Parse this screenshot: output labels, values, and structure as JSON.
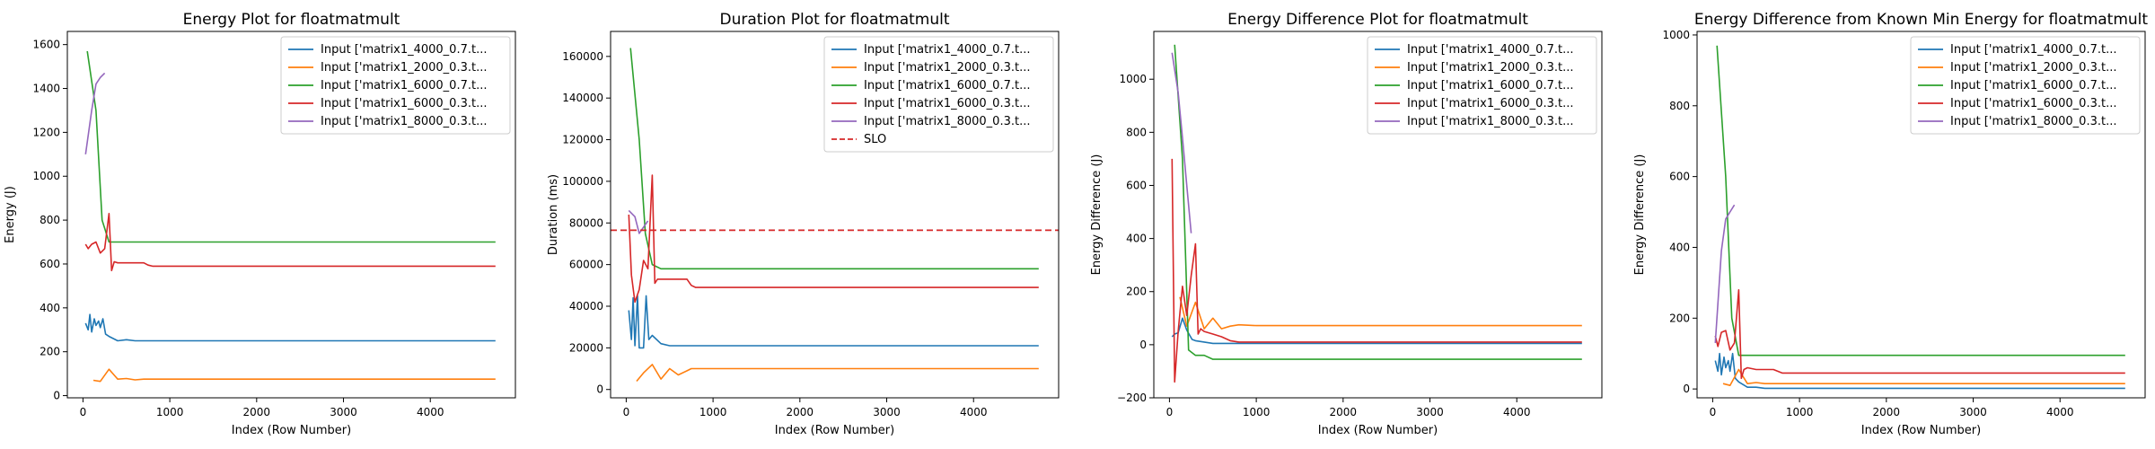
{
  "chart_data": [
    {
      "type": "line",
      "title": "Energy Plot for floatmatmult",
      "xlabel": "Index (Row Number)",
      "ylabel": "Energy (J)",
      "xlim": [
        -180,
        4980
      ],
      "ylim": [
        -10,
        1660
      ],
      "xticks": [
        0,
        1000,
        2000,
        3000,
        4000
      ],
      "yticks": [
        0,
        200,
        400,
        600,
        800,
        1000,
        1200,
        1400,
        1600
      ],
      "legend_position": "top-right",
      "series": [
        {
          "name": "Input ['matrix1_4000_0.7.t...",
          "color": "#1f77b4",
          "x": [
            30,
            60,
            80,
            100,
            130,
            150,
            180,
            200,
            230,
            260,
            300,
            400,
            500,
            600,
            700,
            4750
          ],
          "y": [
            330,
            300,
            370,
            290,
            350,
            320,
            340,
            310,
            350,
            280,
            270,
            250,
            255,
            250,
            250,
            250
          ]
        },
        {
          "name": "Input ['matrix1_2000_0.3.t...",
          "color": "#ff7f0e",
          "x": [
            120,
            200,
            300,
            400,
            500,
            600,
            700,
            4750
          ],
          "y": [
            70,
            65,
            120,
            75,
            78,
            72,
            75,
            75
          ]
        },
        {
          "name": "Input ['matrix1_6000_0.7.t...",
          "color": "#2ca02c",
          "x": [
            50,
            150,
            220,
            300,
            400,
            4750
          ],
          "y": [
            1570,
            1300,
            800,
            700,
            700,
            700
          ]
        },
        {
          "name": "Input ['matrix1_6000_0.3.t...",
          "color": "#d62728",
          "x": [
            30,
            60,
            100,
            150,
            200,
            250,
            300,
            330,
            360,
            400,
            500,
            600,
            700,
            750,
            800,
            4750
          ],
          "y": [
            690,
            670,
            690,
            700,
            650,
            670,
            830,
            570,
            610,
            605,
            605,
            605,
            605,
            595,
            590,
            590
          ]
        },
        {
          "name": "Input ['matrix1_8000_0.3.t...",
          "color": "#9467bd",
          "x": [
            30,
            100,
            150,
            200,
            250
          ],
          "y": [
            1100,
            1300,
            1420,
            1450,
            1470
          ]
        }
      ]
    },
    {
      "type": "line",
      "title": "Duration Plot for floatmatmult",
      "xlabel": "Index (Row Number)",
      "ylabel": "Duration (ms)",
      "xlim": [
        -180,
        4980
      ],
      "ylim": [
        -4000,
        172000
      ],
      "xticks": [
        0,
        1000,
        2000,
        3000,
        4000
      ],
      "yticks": [
        0,
        20000,
        40000,
        60000,
        80000,
        100000,
        120000,
        140000,
        160000
      ],
      "legend_position": "top-right",
      "slo": {
        "name": "SLO",
        "value": 76500,
        "color": "#d62728"
      },
      "series": [
        {
          "name": "Input ['matrix1_4000_0.7.t...",
          "color": "#1f77b4",
          "x": [
            30,
            60,
            80,
            100,
            130,
            150,
            180,
            200,
            230,
            260,
            300,
            400,
            500,
            600,
            700,
            4750
          ],
          "y": [
            38000,
            24000,
            44000,
            21000,
            45000,
            20000,
            20000,
            20000,
            45000,
            24000,
            26000,
            22000,
            21000,
            21000,
            21000,
            21000
          ]
        },
        {
          "name": "Input ['matrix1_2000_0.3.t...",
          "color": "#ff7f0e",
          "x": [
            120,
            200,
            300,
            400,
            500,
            600,
            700,
            750,
            4750
          ],
          "y": [
            4000,
            8000,
            12000,
            5000,
            10000,
            7000,
            9000,
            10000,
            10000
          ]
        },
        {
          "name": "Input ['matrix1_6000_0.7.t...",
          "color": "#2ca02c",
          "x": [
            50,
            150,
            220,
            300,
            400,
            4750
          ],
          "y": [
            164000,
            120000,
            75000,
            60000,
            58000,
            58000
          ]
        },
        {
          "name": "Input ['matrix1_6000_0.3.t...",
          "color": "#d62728",
          "x": [
            30,
            60,
            100,
            150,
            200,
            250,
            300,
            330,
            360,
            400,
            500,
            600,
            700,
            750,
            800,
            4750
          ],
          "y": [
            84000,
            55000,
            42000,
            48000,
            62000,
            58000,
            103000,
            51000,
            53000,
            53000,
            53000,
            53000,
            53000,
            50000,
            49000,
            49000
          ]
        },
        {
          "name": "Input ['matrix1_8000_0.3.t...",
          "color": "#9467bd",
          "x": [
            30,
            100,
            150,
            200,
            250
          ],
          "y": [
            86000,
            83000,
            75000,
            78000,
            81000
          ]
        }
      ]
    },
    {
      "type": "line",
      "title": "Energy Difference Plot for floatmatmult",
      "xlabel": "Index (Row Number)",
      "ylabel": "Energy Difference (J)",
      "xlim": [
        -180,
        4980
      ],
      "ylim": [
        -200,
        1180
      ],
      "xticks": [
        0,
        1000,
        2000,
        3000,
        4000
      ],
      "yticks": [
        -200,
        0,
        200,
        400,
        600,
        800,
        1000
      ],
      "legend_position": "top-right",
      "series": [
        {
          "name": "Input ['matrix1_4000_0.7.t...",
          "color": "#1f77b4",
          "x": [
            30,
            60,
            100,
            150,
            200,
            260,
            300,
            400,
            500,
            600,
            700,
            4750
          ],
          "y": [
            30,
            40,
            45,
            100,
            55,
            20,
            15,
            10,
            5,
            5,
            5,
            5
          ]
        },
        {
          "name": "Input ['matrix1_2000_0.3.t...",
          "color": "#ff7f0e",
          "x": [
            120,
            200,
            300,
            400,
            500,
            600,
            700,
            800,
            1000,
            4750
          ],
          "y": [
            180,
            70,
            160,
            60,
            100,
            60,
            70,
            75,
            72,
            72
          ]
        },
        {
          "name": "Input ['matrix1_6000_0.7.t...",
          "color": "#2ca02c",
          "x": [
            60,
            150,
            220,
            300,
            400,
            500,
            4750
          ],
          "y": [
            1130,
            700,
            -20,
            -40,
            -40,
            -55,
            -55
          ]
        },
        {
          "name": "Input ['matrix1_6000_0.3.t...",
          "color": "#d62728",
          "x": [
            30,
            60,
            100,
            150,
            200,
            250,
            300,
            330,
            360,
            400,
            500,
            600,
            700,
            800,
            4750
          ],
          "y": [
            700,
            -140,
            50,
            220,
            110,
            260,
            380,
            40,
            60,
            50,
            40,
            30,
            15,
            10,
            10
          ]
        },
        {
          "name": "Input ['matrix1_8000_0.3.t...",
          "color": "#9467bd",
          "x": [
            30,
            100,
            150,
            200,
            250
          ],
          "y": [
            1100,
            950,
            780,
            600,
            420
          ]
        }
      ]
    },
    {
      "type": "line",
      "title": "Energy Difference from Known Min Energy for floatmatmult",
      "xlabel": "Index (Row Number)",
      "ylabel": "Energy Difference (J)",
      "xlim": [
        -180,
        4980
      ],
      "ylim": [
        -25,
        1010
      ],
      "xticks": [
        0,
        1000,
        2000,
        3000,
        4000
      ],
      "yticks": [
        0,
        200,
        400,
        600,
        800,
        1000
      ],
      "legend_position": "top-right",
      "series": [
        {
          "name": "Input ['matrix1_4000_0.7.t...",
          "color": "#1f77b4",
          "x": [
            30,
            60,
            80,
            100,
            130,
            150,
            180,
            200,
            230,
            260,
            300,
            400,
            500,
            600,
            700,
            4750
          ],
          "y": [
            80,
            50,
            100,
            40,
            90,
            60,
            80,
            50,
            100,
            30,
            20,
            5,
            5,
            2,
            2,
            2
          ]
        },
        {
          "name": "Input ['matrix1_2000_0.3.t...",
          "color": "#ff7f0e",
          "x": [
            120,
            200,
            300,
            400,
            500,
            600,
            700,
            4750
          ],
          "y": [
            15,
            10,
            55,
            15,
            18,
            15,
            15,
            15
          ]
        },
        {
          "name": "Input ['matrix1_6000_0.7.t...",
          "color": "#2ca02c",
          "x": [
            50,
            150,
            220,
            300,
            400,
            4750
          ],
          "y": [
            970,
            600,
            200,
            95,
            95,
            95
          ]
        },
        {
          "name": "Input ['matrix1_6000_0.3.t...",
          "color": "#d62728",
          "x": [
            30,
            60,
            100,
            150,
            200,
            250,
            300,
            330,
            360,
            400,
            500,
            600,
            700,
            800,
            4750
          ],
          "y": [
            150,
            120,
            160,
            165,
            110,
            130,
            280,
            30,
            55,
            60,
            55,
            55,
            55,
            45,
            45
          ]
        },
        {
          "name": "Input ['matrix1_8000_0.3.t...",
          "color": "#9467bd",
          "x": [
            30,
            100,
            150,
            200,
            250
          ],
          "y": [
            130,
            390,
            480,
            500,
            520
          ]
        }
      ]
    }
  ]
}
